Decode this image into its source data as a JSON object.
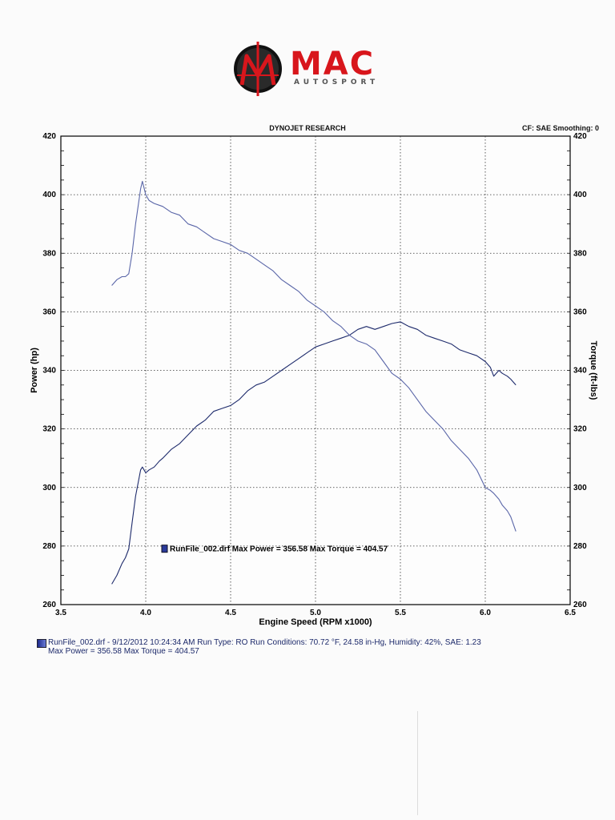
{
  "logo": {
    "text": "MAC",
    "subtext": "AUTOSPORT"
  },
  "header": {
    "title": "DYNOJET RESEARCH",
    "cf_label": "CF: SAE  Smoothing: 0"
  },
  "colors": {
    "power_line": "#1d2a6b",
    "torque_line": "#5a66a8",
    "logo_red": "#d8161c",
    "legend_swatch": "#2a3a9a"
  },
  "chart_data": {
    "type": "line",
    "title": "DYNOJET RESEARCH",
    "xlabel": "Engine Speed (RPM x1000)",
    "ylabel": "Power (hp)",
    "y2label": "Torque (ft-lbs)",
    "xlim": [
      3.5,
      6.5
    ],
    "ylim": [
      260,
      420
    ],
    "y2lim": [
      260,
      420
    ],
    "xticks": [
      "3.5",
      "4.0",
      "4.5",
      "5.0",
      "5.5",
      "6.0",
      "6.5"
    ],
    "yticks": [
      "260",
      "280",
      "300",
      "320",
      "340",
      "360",
      "380",
      "400",
      "420"
    ],
    "grid": true,
    "legend_text": "RunFile_002.drf Max Power = 356.58     Max Torque = 404.57",
    "series": [
      {
        "name": "Power",
        "x": [
          3.8,
          3.83,
          3.86,
          3.88,
          3.9,
          3.92,
          3.94,
          3.96,
          3.97,
          3.98,
          4.0,
          4.02,
          4.05,
          4.08,
          4.1,
          4.15,
          4.2,
          4.25,
          4.3,
          4.35,
          4.4,
          4.45,
          4.5,
          4.55,
          4.6,
          4.65,
          4.7,
          4.75,
          4.8,
          4.85,
          4.9,
          4.95,
          5.0,
          5.05,
          5.1,
          5.15,
          5.2,
          5.25,
          5.3,
          5.35,
          5.4,
          5.45,
          5.5,
          5.55,
          5.6,
          5.65,
          5.7,
          5.75,
          5.8,
          5.85,
          5.9,
          5.95,
          6.0,
          6.03,
          6.05,
          6.08,
          6.1,
          6.13,
          6.15,
          6.18
        ],
        "values": [
          267,
          270,
          274,
          276,
          279,
          288,
          297,
          303,
          306,
          307,
          305,
          306,
          307,
          309,
          310,
          313,
          315,
          318,
          321,
          323,
          326,
          327,
          328,
          330,
          333,
          335,
          336,
          338,
          340,
          342,
          344,
          346,
          348,
          349,
          350,
          351,
          352,
          354,
          355,
          354,
          355,
          356,
          356.58,
          355,
          354,
          352,
          351,
          350,
          349,
          347,
          346,
          345,
          343,
          341,
          338,
          340,
          339,
          338,
          337,
          335
        ]
      },
      {
        "name": "Torque",
        "x": [
          3.8,
          3.83,
          3.86,
          3.88,
          3.9,
          3.92,
          3.94,
          3.96,
          3.97,
          3.98,
          4.0,
          4.02,
          4.05,
          4.1,
          4.15,
          4.2,
          4.25,
          4.3,
          4.35,
          4.4,
          4.45,
          4.5,
          4.55,
          4.6,
          4.65,
          4.7,
          4.75,
          4.8,
          4.85,
          4.9,
          4.95,
          5.0,
          5.05,
          5.1,
          5.15,
          5.2,
          5.25,
          5.3,
          5.35,
          5.4,
          5.45,
          5.5,
          5.55,
          5.6,
          5.65,
          5.7,
          5.75,
          5.8,
          5.85,
          5.9,
          5.95,
          6.0,
          6.03,
          6.05,
          6.08,
          6.1,
          6.13,
          6.15,
          6.18
        ],
        "values": [
          369,
          371,
          372,
          372,
          373,
          380,
          390,
          398,
          402,
          404.57,
          400,
          398,
          397,
          396,
          394,
          393,
          390,
          389,
          387,
          385,
          384,
          383,
          381,
          380,
          378,
          376,
          374,
          371,
          369,
          367,
          364,
          362,
          360,
          357,
          355,
          352,
          350,
          349,
          347,
          343,
          339,
          337,
          334,
          330,
          326,
          323,
          320,
          316,
          313,
          310,
          306,
          300,
          299,
          298,
          296,
          294,
          292,
          290,
          285
        ]
      }
    ]
  },
  "footer": {
    "line1": "RunFile_002.drf - 9/12/2012 10:24:34 AM  Run Type: RO  Run Conditions: 70.72 °F, 24.58 in-Hg,  Humidity:  42%, SAE: 1.23",
    "line2": "Max Power = 356.58  Max Torque = 404.57"
  }
}
